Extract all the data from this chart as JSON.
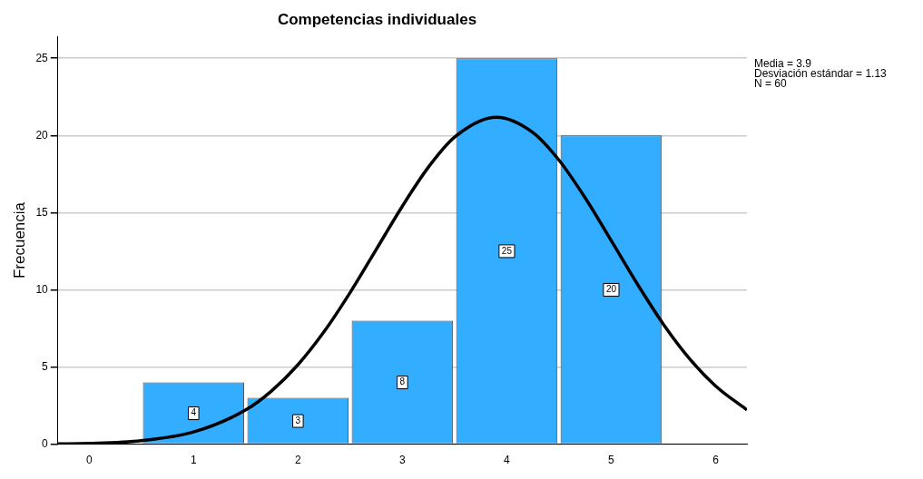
{
  "chart_data": {
    "type": "histogram",
    "title": "Competencias individuales",
    "ylabel": "Frecuencia",
    "bins": [
      0.5,
      1.5,
      2.5,
      3.5,
      4.5,
      5.5
    ],
    "values": [
      4,
      3,
      8,
      25,
      20
    ],
    "color": "#33adff",
    "value_labels": [
      "4",
      "3",
      "8",
      "25",
      "20"
    ],
    "xlim": [
      -0.3,
      6.3
    ],
    "xticks": [
      0,
      1,
      2,
      3,
      4,
      5,
      6
    ],
    "ylim": [
      0,
      26.4
    ],
    "yticks": [
      0,
      5,
      10,
      15,
      20,
      25
    ],
    "grid": "y",
    "series": [
      {
        "type": "line",
        "color": "#000000",
        "marker": "none",
        "x": [
          -0.3,
          0,
          0.5,
          1,
          1.5,
          1.75,
          2,
          2.25,
          2.5,
          2.75,
          3,
          3.25,
          3.5,
          3.9,
          4.25,
          4.5,
          4.75,
          5,
          5.25,
          5.5,
          5.75,
          6,
          6.3
        ],
        "values": [
          0.02,
          0.05,
          0.23,
          0.79,
          2.22,
          3.47,
          5.15,
          7.29,
          9.83,
          12.62,
          15.42,
          17.95,
          19.89,
          21.18,
          20.19,
          18.4,
          15.96,
          13.19,
          10.38,
          7.77,
          5.54,
          3.77,
          2.22
        ]
      }
    ],
    "annotations": [
      "Media = 3.9",
      "Desviación estándar = 1.13",
      "N = 60"
    ]
  }
}
